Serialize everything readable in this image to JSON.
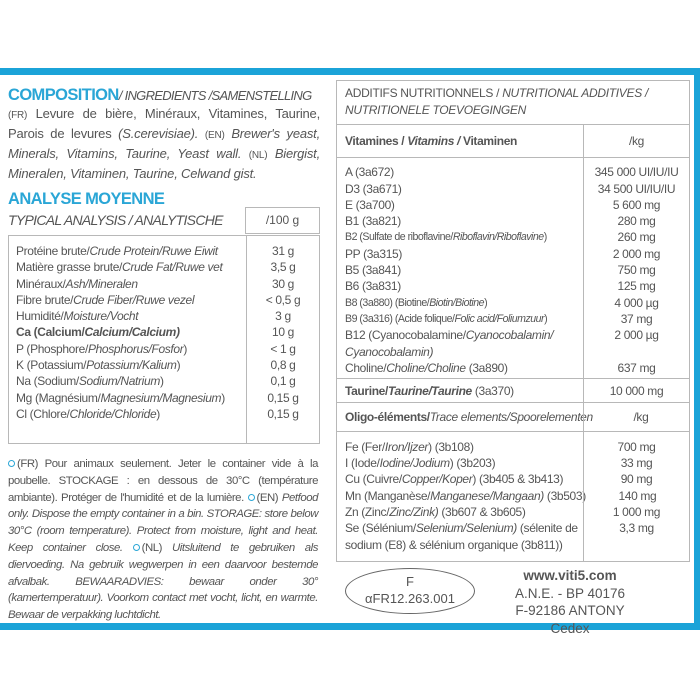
{
  "colors": {
    "accent": "#1ba3d8",
    "text": "#555555",
    "border": "#b8b8b8"
  },
  "composition": {
    "title": "COMPOSITION",
    "subtitle": "/ INGREDIENTS /SAMENSTELLING",
    "fr_tag": "(FR)",
    "fr_text": "Levure de bière, Minéraux, Vitamines, Taurine, Parois de levures ",
    "fr_species": "(S.cerevisiae).",
    "en_tag": "(EN)",
    "en_text": "Brewer's yeast, Minerals, Vitamins, Taurine, Yeast wall.",
    "nl_tag": "(NL)",
    "nl_text": "Biergist, Mineralen, Vitaminen, Taurine, Celwand gist."
  },
  "analysis": {
    "title": "ANALYSE MOYENNE",
    "subtitle": "TYPICAL ANALYSIS / ANALYTISCHE",
    "unit": "/100 g",
    "rows": [
      {
        "fr": "Protéine brute/",
        "it": "Crude Protein/Ruwe Eiwit",
        "value": "31 g"
      },
      {
        "fr": "Matière grasse brute/",
        "it": "Crude Fat/Ruwe vet",
        "value": "3,5 g"
      },
      {
        "fr": "Minéraux/",
        "it": "Ash/Mineralen",
        "value": "30 g"
      },
      {
        "fr": "Fibre brute/",
        "it": "Crude Fiber/Ruwe vezel",
        "value": "< 0,5 g"
      },
      {
        "fr": "Humidité/",
        "it": "Moisture/Vocht",
        "value": "3 g"
      },
      {
        "fr": "Ca (Calcium/",
        "it": "Calcium/Calcium)",
        "value": "10 g",
        "bold": true
      },
      {
        "fr": "P (Phosphore/",
        "it": "Phosphorus/Fosfor",
        "end": ")",
        "value": "< 1 g"
      },
      {
        "fr": "K (Potassium/",
        "it": "Potassium/Kalium",
        "end": ")",
        "value": "0,8 g"
      },
      {
        "fr": "Na (Sodium/",
        "it": "Sodium/Natrium",
        "end": ")",
        "value": "0,1 g"
      },
      {
        "fr": "Mg (Magnésium/",
        "it": "Magnesium/Magnesium",
        "end": ")",
        "value": "0,15 g"
      },
      {
        "fr": "Cl (Chlore/",
        "it": "Chloride/Chloride",
        "end": ")",
        "value": "0,15 g"
      }
    ]
  },
  "notes": {
    "fr": "(FR) Pour animaux seulement. Jeter le container vide à la poubelle. STOCKAGE : en dessous de 30°C (température ambiante). Protéger de l'humidité et de la lumière.",
    "en_tag": "(EN)",
    "en": "Petfood only. Dispose the empty container in a bin. STORAGE: store below 30°C (room temperature). Protect from moisture, light and heat. Keep container close.",
    "nl_tag": "(NL)",
    "nl": "Uitsluitend te gebruiken als diervoeding. Na gebruik wegwerpen in een daarvoor bestemde afvalbak. BEWAARADVIES: bewaar onder 30° (kamertemperatuur). Voorkom contact met vocht, licht, en warmte. Bewaar de verpakking luchtdicht."
  },
  "additives": {
    "title_fr": "ADDITIFS NUTRITIONNELS / ",
    "title_it": "NUTRITIONAL ADDITIVES / NUTRITIONELE TOEVOEGINGEN",
    "vitamins_header": {
      "fr": "Vitamines / ",
      "it": "Vitamins / ",
      "nl": "Vitaminen",
      "unit": "/kg"
    },
    "vitamins": [
      {
        "fr": "A (3a672)",
        "value": "345 000 UI/IU/IU"
      },
      {
        "fr": "D3 (3a671)",
        "value": "34 500 UI/IU/IU"
      },
      {
        "fr": "E (3a700)",
        "value": "5 600 mg"
      },
      {
        "fr": "B1 (3a821)",
        "value": "280 mg"
      },
      {
        "fr": "B2 (Sulfate de riboflavine/",
        "it": "Riboflavin/Riboflavine",
        "end": ")",
        "value": "260 mg",
        "small": true
      },
      {
        "fr": "PP (3a315)",
        "value": "2 000 mg"
      },
      {
        "fr": "B5 (3a841)",
        "value": "750 mg"
      },
      {
        "fr": "B6 (3a831)",
        "value": "125 mg"
      },
      {
        "fr": "B8 (3a880) (Biotine/",
        "it": "Biotin/Biotine",
        "end": ")",
        "value": "4 000 µg",
        "small": true
      },
      {
        "fr": "B9 (3a316) (Acide folique/",
        "it": "Folic acid/Foliumzuur",
        "end": ")",
        "value": "37 mg",
        "small": true
      },
      {
        "fr": "B12 (Cyanocobalamine/",
        "it": "Cyanocobalamin/",
        "value": "2 000 µg"
      },
      {
        "fr": "",
        "it": "Cyanocobalamin)",
        "value": ""
      },
      {
        "fr": "Choline/",
        "it": "Choline/Choline",
        "end": " (3a890)",
        "value": "637 mg"
      }
    ],
    "taurine": {
      "fr": "Taurine/",
      "it": "Taurine/Taurine",
      "end": " (3a370)",
      "value": "10 000 mg"
    },
    "trace_header": {
      "fr": "Oligo-éléments/",
      "it": "Trace elements/Spoorelementen",
      "unit": "/kg"
    },
    "trace": [
      {
        "fr": "Fe (Fer/",
        "it": "Iron/Ijzer",
        "end": ") (3b108)",
        "value": "700 mg"
      },
      {
        "fr": "I (Iode/",
        "it": "Iodine/Jodium",
        "end": ") (3b203)",
        "value": "33 mg"
      },
      {
        "fr": "Cu (Cuivre/",
        "it": "Copper/Koper",
        "end": ") (3b405 & 3b413)",
        "value": "90 mg"
      },
      {
        "fr": "Mn (Manganèse/",
        "it": "Manganese/Mangaan)",
        "end": " (3b503)",
        "value": "140 mg"
      },
      {
        "fr": "Zn (Zinc/",
        "it": "Zinc/Zink)",
        "end": " (3b607 & 3b605)",
        "value": "1 000 mg"
      },
      {
        "fr": "Se (Sélénium/",
        "it": "Selenium/Selenium)",
        "end": " (sélenite de",
        "value": "3,3 mg"
      },
      {
        "fr": "sodium (E8) & sélénium organique (3b811))",
        "value": ""
      }
    ]
  },
  "approval": {
    "line1": "F",
    "line2": "αFR12.263.001"
  },
  "address": {
    "web": "www.viti5.com",
    "line1": "A.N.E. - BP 40176",
    "line2": "F-92186 ANTONY Cedex"
  }
}
